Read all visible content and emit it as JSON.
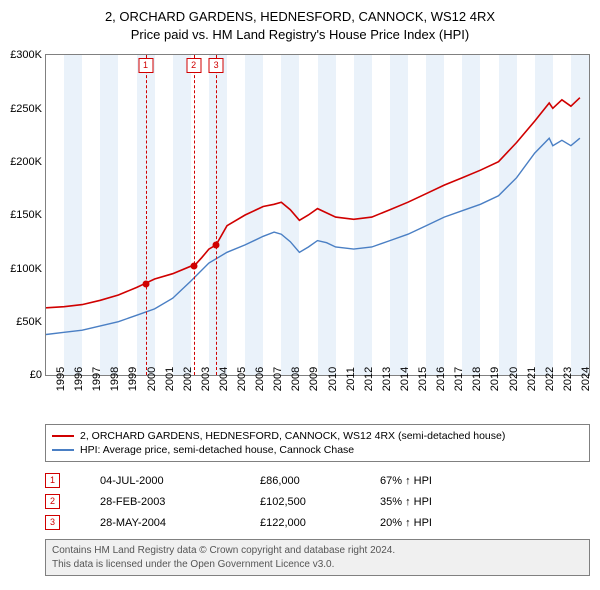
{
  "title_line1": "2, ORCHARD GARDENS, HEDNESFORD, CANNOCK, WS12 4RX",
  "title_line2": "Price paid vs. HM Land Registry's House Price Index (HPI)",
  "chart": {
    "type": "line",
    "background": "#ffffff",
    "band_color": "#eaf2fa",
    "border_color": "#808080",
    "x_min": 1995,
    "x_max": 2025,
    "y_min": 0,
    "y_max": 300,
    "y_ticks": [
      0,
      50,
      100,
      150,
      200,
      250,
      300
    ],
    "y_tick_labels": [
      "£0",
      "£50K",
      "£100K",
      "£150K",
      "£200K",
      "£250K",
      "£300K"
    ],
    "x_ticks": [
      1995,
      1996,
      1997,
      1998,
      1999,
      2000,
      2001,
      2002,
      2003,
      2004,
      2005,
      2006,
      2007,
      2008,
      2009,
      2010,
      2011,
      2012,
      2013,
      2014,
      2015,
      2016,
      2017,
      2018,
      2019,
      2020,
      2021,
      2022,
      2023,
      2024
    ],
    "series": [
      {
        "name": "property",
        "color": "#d00000",
        "width": 1.6,
        "points": [
          [
            1995,
            63
          ],
          [
            1996,
            64
          ],
          [
            1997,
            66
          ],
          [
            1998,
            70
          ],
          [
            1999,
            75
          ],
          [
            2000,
            82
          ],
          [
            2000.5,
            86
          ],
          [
            2001,
            90
          ],
          [
            2002,
            95
          ],
          [
            2003,
            102
          ],
          [
            2003.2,
            102.5
          ],
          [
            2003.6,
            110
          ],
          [
            2004,
            118
          ],
          [
            2004.4,
            122
          ],
          [
            2005,
            140
          ],
          [
            2006,
            150
          ],
          [
            2007,
            158
          ],
          [
            2007.6,
            160
          ],
          [
            2008,
            162
          ],
          [
            2008.5,
            155
          ],
          [
            2009,
            145
          ],
          [
            2009.5,
            150
          ],
          [
            2010,
            156
          ],
          [
            2010.5,
            152
          ],
          [
            2011,
            148
          ],
          [
            2012,
            146
          ],
          [
            2013,
            148
          ],
          [
            2014,
            155
          ],
          [
            2015,
            162
          ],
          [
            2016,
            170
          ],
          [
            2017,
            178
          ],
          [
            2018,
            185
          ],
          [
            2019,
            192
          ],
          [
            2020,
            200
          ],
          [
            2021,
            218
          ],
          [
            2022,
            238
          ],
          [
            2022.8,
            255
          ],
          [
            2023,
            250
          ],
          [
            2023.5,
            258
          ],
          [
            2024,
            252
          ],
          [
            2024.5,
            260
          ]
        ]
      },
      {
        "name": "hpi",
        "color": "#4a7fc4",
        "width": 1.4,
        "points": [
          [
            1995,
            38
          ],
          [
            1996,
            40
          ],
          [
            1997,
            42
          ],
          [
            1998,
            46
          ],
          [
            1999,
            50
          ],
          [
            2000,
            56
          ],
          [
            2001,
            62
          ],
          [
            2002,
            72
          ],
          [
            2003,
            88
          ],
          [
            2004,
            105
          ],
          [
            2005,
            115
          ],
          [
            2006,
            122
          ],
          [
            2007,
            130
          ],
          [
            2007.6,
            134
          ],
          [
            2008,
            132
          ],
          [
            2008.5,
            125
          ],
          [
            2009,
            115
          ],
          [
            2009.5,
            120
          ],
          [
            2010,
            126
          ],
          [
            2010.5,
            124
          ],
          [
            2011,
            120
          ],
          [
            2012,
            118
          ],
          [
            2013,
            120
          ],
          [
            2014,
            126
          ],
          [
            2015,
            132
          ],
          [
            2016,
            140
          ],
          [
            2017,
            148
          ],
          [
            2018,
            154
          ],
          [
            2019,
            160
          ],
          [
            2020,
            168
          ],
          [
            2021,
            185
          ],
          [
            2022,
            208
          ],
          [
            2022.8,
            222
          ],
          [
            2023,
            215
          ],
          [
            2023.5,
            220
          ],
          [
            2024,
            215
          ],
          [
            2024.5,
            222
          ]
        ]
      }
    ],
    "markers": [
      {
        "n": "1",
        "x": 2000.5,
        "y": 86
      },
      {
        "n": "2",
        "x": 2003.16,
        "y": 102.5
      },
      {
        "n": "3",
        "x": 2004.4,
        "y": 122
      }
    ],
    "marker_color": "#d00000"
  },
  "legend": {
    "items": [
      {
        "color": "#d00000",
        "label": "2, ORCHARD GARDENS, HEDNESFORD, CANNOCK, WS12 4RX (semi-detached house)"
      },
      {
        "color": "#4a7fc4",
        "label": "HPI: Average price, semi-detached house, Cannock Chase"
      }
    ]
  },
  "events": [
    {
      "n": "1",
      "date": "04-JUL-2000",
      "price": "£86,000",
      "diff": "67% ↑ HPI"
    },
    {
      "n": "2",
      "date": "28-FEB-2003",
      "price": "£102,500",
      "diff": "35% ↑ HPI"
    },
    {
      "n": "3",
      "date": "28-MAY-2004",
      "price": "£122,000",
      "diff": "20% ↑ HPI"
    }
  ],
  "footer_line1": "Contains HM Land Registry data © Crown copyright and database right 2024.",
  "footer_line2": "This data is licensed under the Open Government Licence v3.0."
}
